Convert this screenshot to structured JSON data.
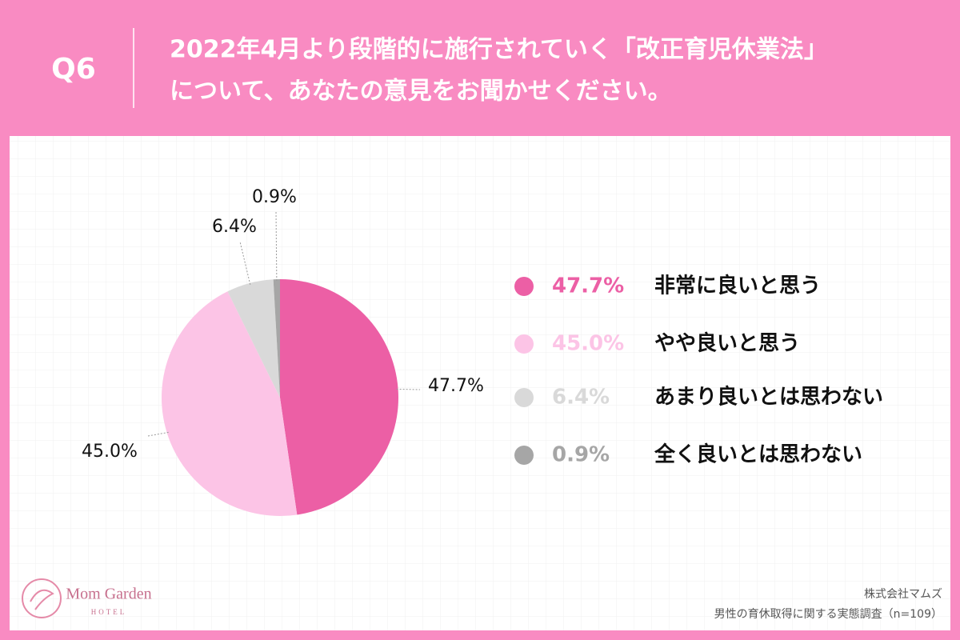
{
  "header": {
    "label": "Q6",
    "title": [
      "2022年4月より段階的に施行されていく「改正育児休業法」",
      "について、あなたの意見をお聞かせください。"
    ]
  },
  "chart_data": {
    "type": "pie",
    "categories": [
      "非常に良いと思う",
      "やや良いと思う",
      "あまり良いとは思わない",
      "全く良いとは思わない"
    ],
    "values": [
      47.7,
      45.0,
      6.4,
      0.9
    ],
    "value_labels": [
      "47.7%",
      "45.0%",
      "6.4%",
      "0.9%"
    ],
    "colors": [
      "#ec5fa5",
      "#fcc4e6",
      "#d9d9d9",
      "#a6a6a6"
    ]
  },
  "footer": {
    "brand": "Mom Garden",
    "brand_sub": "HOTEL",
    "company": "株式会社マムズ",
    "source": "男性の育休取得に関する実態調査（n=109）"
  }
}
